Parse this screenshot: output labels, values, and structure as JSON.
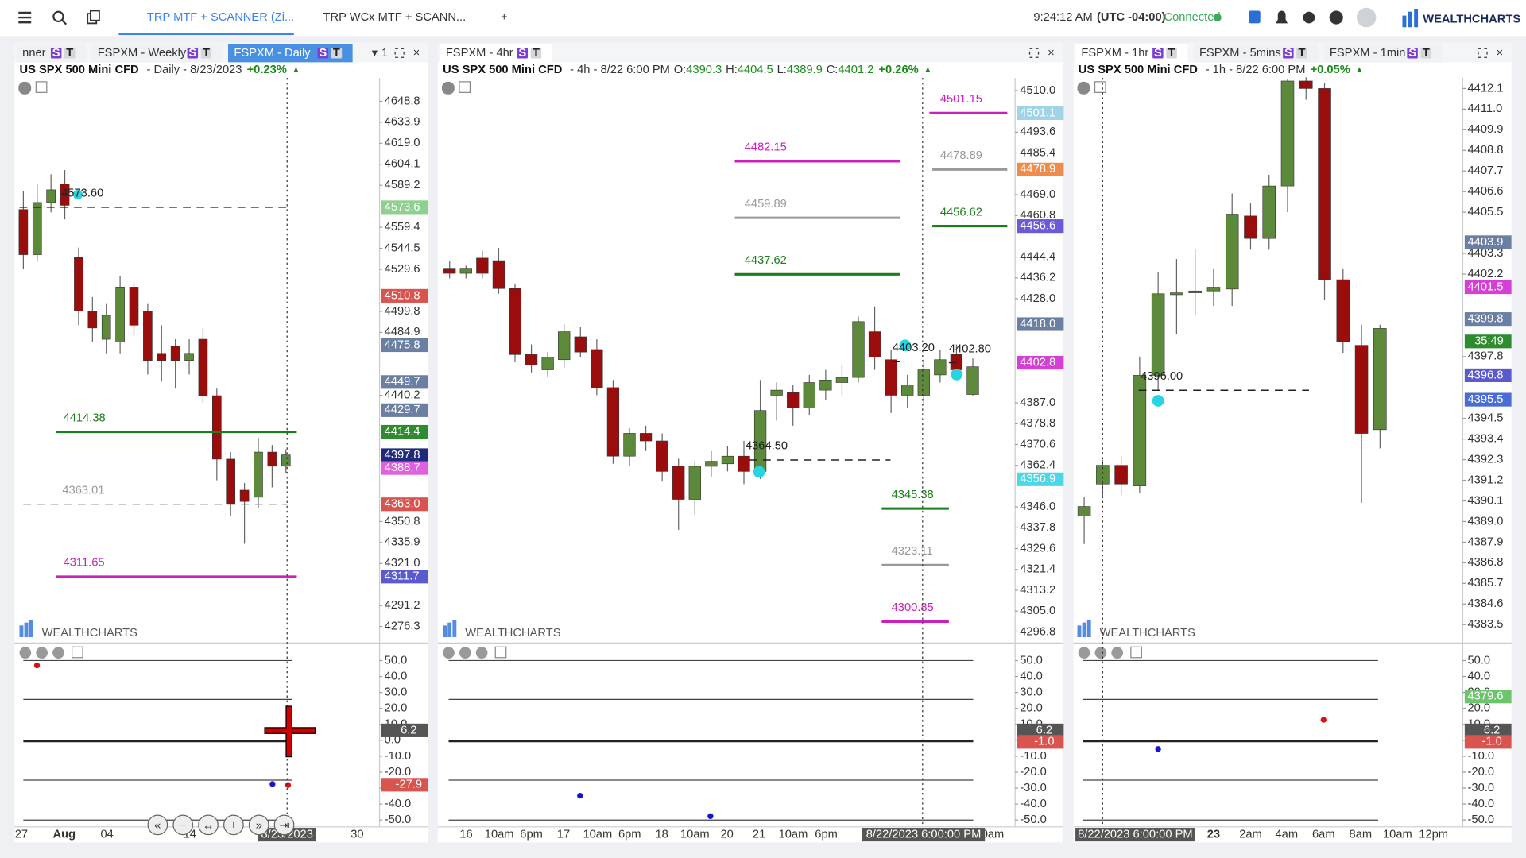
{
  "topbar": {
    "tabs": [
      "TRP MTF + SCANNER (Zi...",
      "TRP WCx MTF + SCANN..."
    ],
    "time": "9:24:12 AM",
    "timezone": "(UTC -04:00)",
    "status": "Connected",
    "brand": "WEALTHCHARTS"
  },
  "oscillator": {
    "ylim": [
      -54.3,
      60.4
    ],
    "yticks": [
      {
        "value": 50,
        "label": "50.0"
      },
      {
        "value": 40,
        "label": "40.0"
      },
      {
        "value": 30,
        "label": "30.0"
      },
      {
        "value": 20,
        "label": "20.0"
      },
      {
        "value": 10,
        "label": "10.0"
      },
      {
        "value": 0,
        "label": "0.0"
      },
      {
        "value": -10,
        "label": "-10.0"
      },
      {
        "value": -20,
        "label": "-20.0"
      },
      {
        "value": -30,
        "label": "-30.0"
      },
      {
        "value": -40,
        "label": "-40.0"
      },
      {
        "value": -50,
        "label": "-50.0"
      }
    ]
  },
  "panels": [
    {
      "tabs": [
        {
          "label": "nner",
          "badges": [
            "S",
            "T"
          ]
        },
        {
          "label": "FSPXM - Weekly",
          "badges": [
            "S",
            "T"
          ]
        },
        {
          "label": "FSPXM - Daily",
          "badges": [
            "S",
            "T"
          ],
          "active": true
        }
      ],
      "layout_number": "1",
      "header": {
        "symbol": "US SPX 500 Mini CFD",
        "info": "- Daily - 8/23/2023",
        "change": "+0.23%"
      },
      "chart_data": {
        "type": "candlestick",
        "ylim": [
          4265.3,
          4665.4
        ],
        "yticks": [
          4648.8,
          4633.9,
          {
            "value": 4619,
            "label": "4619.0"
          },
          4604.1,
          4589.2,
          4559.4,
          4544.5,
          4529.6,
          4499.8,
          4484.9,
          4440.2,
          4350.8,
          4335.9,
          {
            "value": 4321,
            "label": "4321.0"
          },
          4291.2,
          4276.3
        ],
        "candles": [
          [
            4572,
            4585,
            4530,
            4540
          ],
          [
            4540,
            4590,
            4535,
            4577
          ],
          [
            4577,
            4597,
            4570,
            4586
          ],
          [
            4590,
            4600,
            4565,
            4575
          ],
          [
            4538,
            4545,
            4490,
            4500
          ],
          [
            4500,
            4510,
            4478,
            4488
          ],
          [
            4480,
            4505,
            4470,
            4497
          ],
          [
            4478,
            4525,
            4470,
            4517
          ],
          [
            4517,
            4520,
            4482,
            4490
          ],
          [
            4500,
            4505,
            4455,
            4465
          ],
          [
            4470,
            4490,
            4450,
            4465
          ],
          [
            4475,
            4480,
            4445,
            4465
          ],
          [
            4465,
            4480,
            4455,
            4470
          ],
          [
            4480,
            4488,
            4435,
            4440
          ],
          [
            4440,
            4445,
            4380,
            4395
          ],
          [
            4395,
            4400,
            4355,
            4363
          ],
          [
            4373,
            4378,
            4335,
            4365
          ],
          [
            4368,
            4410,
            4360,
            4400
          ],
          [
            4400,
            4405,
            4375,
            4390
          ],
          [
            4390,
            4402,
            4385,
            4398
          ]
        ],
        "price_tags": [
          {
            "value": 4573.6,
            "color": "#8fcf8f"
          },
          {
            "value": 4510.8,
            "color": "#d9534f"
          },
          {
            "value": 4475.8,
            "color": "#6b7fa3"
          },
          {
            "value": 4449.7,
            "color": "#6b7fa3"
          },
          {
            "value": 4429.7,
            "color": "#6b7fa3"
          },
          {
            "value": 4414.4,
            "color": "#2e8b2e"
          },
          {
            "value": 4397.8,
            "color": "#1f2a7a"
          },
          {
            "value": 4388.7,
            "color": "#e060e0"
          },
          {
            "value": 4363,
            "label": "4363.0",
            "color": "#d9534f"
          },
          {
            "value": 4311.7,
            "color": "#5a5acf"
          }
        ],
        "levels": [
          {
            "label": "4573.60",
            "value": 4573.6,
            "color": "#222222"
          },
          {
            "label": "4414.38",
            "value": 4414.38,
            "color": "#1b7d1b"
          },
          {
            "label": "4363.01",
            "value": 4363.01,
            "color": "#999999"
          },
          {
            "label": "4311.65",
            "value": 4311.65,
            "color": "#cc1fc0"
          }
        ],
        "xticks": [
          "27",
          "Aug",
          "04",
          "14",
          "30"
        ],
        "cursor_time": "8/23/2023",
        "osc_tags": [
          {
            "value": 6.2,
            "color": "#555555"
          },
          {
            "value": -27.9,
            "color": "#d9534f"
          }
        ]
      }
    },
    {
      "tabs": [
        {
          "label": "FSPXM - 4hr",
          "badges": [
            "S",
            "T"
          ],
          "active": true
        }
      ],
      "header": {
        "symbol": "US SPX 500 Mini CFD",
        "info": "- 4h - 8/22 6:00 PM",
        "ohlc": [
          [
            "O:",
            4390.3
          ],
          [
            "H:",
            4404.5
          ],
          [
            "L:",
            4389.9
          ],
          [
            "C:",
            4401.2
          ]
        ],
        "change": "+0.26%"
      },
      "chart_data": {
        "type": "candlestick",
        "ylim": [
          4292.8,
          4515.0
        ],
        "yticks": [
          {
            "value": 4510,
            "label": "4510.0"
          },
          4493.6,
          4485.4,
          {
            "value": 4469,
            "label": "4469.0"
          },
          4460.8,
          4444.4,
          4436.2,
          {
            "value": 4428,
            "label": "4428.0"
          },
          {
            "value": 4387,
            "label": "4387.0"
          },
          4378.8,
          4370.6,
          4362.4,
          {
            "value": 4346,
            "label": "4346.0"
          },
          4337.8,
          4329.6,
          4321.4,
          4313.2,
          {
            "value": 4305,
            "label": "4305.0"
          },
          4296.8
        ],
        "candles": [
          [
            4440,
            4443,
            4436,
            4438
          ],
          [
            4438,
            4441,
            4436,
            4440
          ],
          [
            4444,
            4447,
            4436,
            4438
          ],
          [
            4443,
            4448,
            4430,
            4432
          ],
          [
            4432,
            4434,
            4403,
            4406
          ],
          [
            4406,
            4410,
            4399,
            4402
          ],
          [
            4400,
            4407,
            4397,
            4405
          ],
          [
            4404,
            4418,
            4401,
            4415
          ],
          [
            4413,
            4417,
            4405,
            4407
          ],
          [
            4408,
            4412,
            4390,
            4393
          ],
          [
            4393,
            4396,
            4363,
            4366
          ],
          [
            4366,
            4377,
            4362,
            4375
          ],
          [
            4375,
            4378,
            4368,
            4372
          ],
          [
            4372,
            4375,
            4356,
            4360
          ],
          [
            4362,
            4365,
            4337,
            4349
          ],
          [
            4349,
            4364,
            4343,
            4362
          ],
          [
            4362,
            4368,
            4358,
            4364
          ],
          [
            4363,
            4370,
            4360,
            4366
          ],
          [
            4366,
            4372,
            4355,
            4360
          ],
          [
            4360,
            4396,
            4357,
            4384
          ],
          [
            4390,
            4395,
            4380,
            4392
          ],
          [
            4391,
            4394,
            4378,
            4385
          ],
          [
            4385,
            4398,
            4382,
            4395
          ],
          [
            4392,
            4400,
            4388,
            4396
          ],
          [
            4395,
            4402,
            4390,
            4397
          ],
          [
            4397,
            4421,
            4395,
            4419
          ],
          [
            4415,
            4425,
            4400,
            4405
          ],
          [
            4404,
            4408,
            4383,
            4390
          ],
          [
            4390,
            4398,
            4385,
            4394
          ],
          [
            4390,
            4404,
            4386,
            4400
          ],
          [
            4398,
            4408,
            4395,
            4404
          ],
          [
            4406,
            4410,
            4396,
            4400
          ],
          [
            4390.3,
            4404.5,
            4389.9,
            4401.2
          ]
        ],
        "price_tags": [
          {
            "value": 4501.1,
            "color": "#9fd3e8"
          },
          {
            "value": 4478.9,
            "color": "#f08c4a"
          },
          {
            "value": 4456.6,
            "color": "#6a5ad6"
          },
          {
            "value": 4418,
            "label": "4418.0",
            "color": "#6b7fa3"
          },
          {
            "value": 4402.8,
            "color": "#d63fd6"
          },
          {
            "value": 4356.9,
            "color": "#4fd6e6"
          }
        ],
        "levels": [
          {
            "label": "4501.15",
            "value": 4501.15,
            "color": "#cc1fc0"
          },
          {
            "label": "4482.15",
            "value": 4482.15,
            "color": "#cc1fc0"
          },
          {
            "label": "4478.89",
            "value": 4478.89,
            "color": "#999999"
          },
          {
            "label": "4459.89",
            "value": 4459.89,
            "color": "#999999"
          },
          {
            "label": "4456.62",
            "value": 4456.62,
            "color": "#1b7d1b"
          },
          {
            "label": "4437.62",
            "value": 4437.62,
            "color": "#1b7d1b"
          },
          {
            "label": "4345.38",
            "value": 4345.38,
            "color": "#1b7d1b"
          },
          {
            "label": "4323.11",
            "value": 4323.11,
            "color": "#999999"
          },
          {
            "label": "4300.85",
            "value": 4300.85,
            "color": "#cc1fc0"
          },
          {
            "label": "4364.50",
            "value": 4364.5,
            "color": "#222222"
          },
          {
            "label": "4403.20",
            "value": 4403.2,
            "color": "#222222"
          },
          {
            "label": "4402.80",
            "value": 4402.8,
            "color": "#222222"
          }
        ],
        "xticks": [
          "16",
          "10am",
          "6pm",
          "17",
          "10am",
          "6pm",
          "18",
          "10am",
          "20",
          "21",
          "10am",
          "6pm",
          "0am"
        ],
        "cursor_time": "8/22/2023 6:00:00 PM",
        "osc_tags": [
          {
            "value": 6.2,
            "color": "#555555"
          },
          {
            "value": -1,
            "label": "-1.0",
            "color": "#d9534f"
          }
        ]
      }
    },
    {
      "tabs": [
        {
          "label": "FSPXM - 1hr",
          "badges": [
            "S",
            "T"
          ],
          "active": true
        },
        {
          "label": "FSPXM - 5mins",
          "badges": [
            "S",
            "T"
          ]
        },
        {
          "label": "FSPXM - 1min",
          "badges": [
            "S",
            "T"
          ]
        }
      ],
      "header": {
        "symbol": "US SPX 500 Mini CFD",
        "info": "- 1h - 8/22 6:00 PM",
        "change": "+0.05%"
      },
      "chart_data": {
        "type": "candlestick",
        "ylim": [
          4382.57,
          4412.67
        ],
        "yticks": [
          4412.1,
          {
            "value": 4411,
            "label": "4411.0"
          },
          4409.9,
          4408.8,
          4407.7,
          4406.6,
          4405.5,
          4403.3,
          4402.2,
          4397.8,
          4394.5,
          4393.4,
          4392.3,
          4391.2,
          4390.1,
          {
            "value": 4389,
            "label": "4389.0"
          },
          4387.9,
          4386.8,
          4385.7,
          4384.6,
          4383.5
        ],
        "candles": [
          [
            4389.3,
            4390.3,
            4387.8,
            4389.8
          ],
          [
            4391,
            4392.3,
            4390.3,
            4392
          ],
          [
            4392,
            4392.5,
            4390.4,
            4391
          ],
          [
            4390.9,
            4397.8,
            4390.5,
            4396.8
          ],
          [
            4396.8,
            4402.3,
            4396,
            4401.15
          ],
          [
            4401.1,
            4403,
            4399,
            4401.2
          ],
          [
            4401.2,
            4403.5,
            4400,
            4401.3
          ],
          [
            4401.3,
            4402.5,
            4400.5,
            4401.5
          ],
          [
            4401.4,
            4406.5,
            4400.5,
            4405.4
          ],
          [
            4405.3,
            4406,
            4403.5,
            4404.1
          ],
          [
            4404.1,
            4407.5,
            4403.5,
            4406.9
          ],
          [
            4406.9,
            4412.6,
            4405.5,
            4412.5
          ],
          [
            4412.5,
            4412.7,
            4411.5,
            4412.1
          ],
          [
            4412.1,
            4412.4,
            4400.8,
            4401.9
          ],
          [
            4401.9,
            4402.5,
            4398,
            4398.6
          ],
          [
            4398.4,
            4399.5,
            4390,
            4393.7
          ],
          [
            4393.9,
            4399.5,
            4392.9,
            4399.3
          ]
        ],
        "price_tags": [
          {
            "value": 4403.9,
            "color": "#6b7fa3"
          },
          {
            "value": 4401.5,
            "color": "#d63fd6"
          },
          {
            "value": 4399.8,
            "color": "#6b7fa3"
          },
          {
            "value": 4396.8,
            "color": "#5a5acf"
          },
          {
            "value": 4395.5,
            "color": "#4a6cd6"
          }
        ],
        "countdown": "35:49",
        "levels": [
          {
            "label": "4396.00",
            "value": 4396,
            "color": "#222222"
          }
        ],
        "xticks": [
          "23",
          "2am",
          "4am",
          "6am",
          "8am",
          "10am",
          "12pm"
        ],
        "cursor_time": "8/22/2023 6:00:00 PM",
        "osc_note": "4379.6",
        "osc_tags": [
          {
            "value": 6.2,
            "color": "#555555"
          },
          {
            "value": -1,
            "label": "-1.0",
            "color": "#d9534f"
          }
        ]
      }
    }
  ]
}
